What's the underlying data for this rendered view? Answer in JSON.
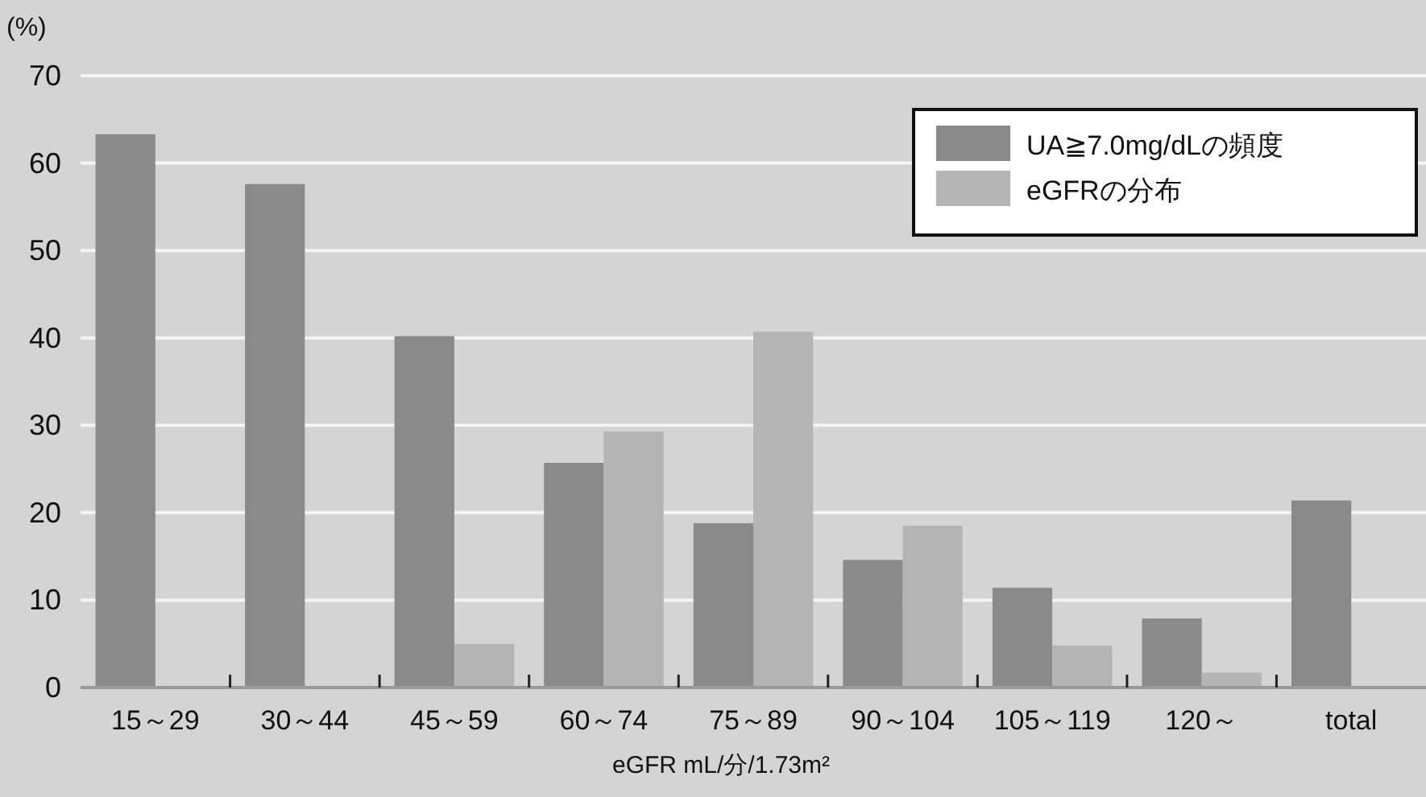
{
  "chart_data": {
    "type": "bar",
    "ylabel": "(%)",
    "xlabel": "eGFR mL/分/1.73m²",
    "categories": [
      "15～29",
      "30～44",
      "45～59",
      "60～74",
      "75～89",
      "90～104",
      "105～119",
      "120～",
      "total"
    ],
    "series": [
      {
        "name": "UA≧7.0mg/dLの頻度",
        "color": "#8a8a8a",
        "values": [
          63.3,
          57.6,
          40.2,
          25.7,
          18.8,
          14.6,
          11.4,
          7.9,
          21.4
        ]
      },
      {
        "name": "eGFRの分布",
        "color": "#b4b4b4",
        "values": [
          null,
          null,
          5,
          29.3,
          40.7,
          18.5,
          4.8,
          1.7,
          null
        ]
      }
    ],
    "ylim": [
      0,
      70
    ],
    "yticks": [
      0,
      10,
      20,
      30,
      40,
      50,
      60,
      70
    ],
    "grid": "y",
    "legend": "top right"
  }
}
